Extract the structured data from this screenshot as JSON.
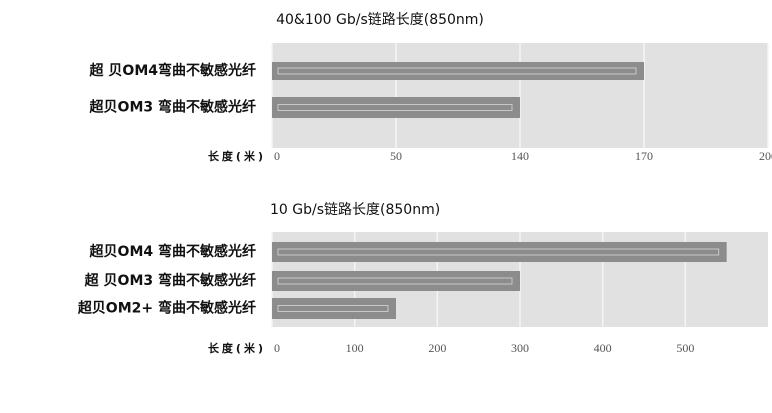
{
  "chart_data": [
    {
      "type": "bar",
      "orientation": "horizontal",
      "title": "40&100 Gb/s链路长度(850nm)",
      "x_label": "长度(米)",
      "categories": [
        "超 贝OM4弯曲不敏感光纤",
        "超贝OM3 弯曲不敏感光纤"
      ],
      "values": [
        170,
        140
      ],
      "color": "#8c8c8c",
      "xlim": [
        0,
        200
      ],
      "xticks": [
        0,
        50,
        140,
        170,
        200
      ],
      "grid": true
    },
    {
      "type": "bar",
      "orientation": "horizontal",
      "title": "10 Gb/s链路长度(850nm)",
      "x_label": "长度(米)",
      "categories": [
        "超贝OM4 弯曲不敏感光纤",
        "超 贝OM3 弯曲不敏感光纤",
        "超贝OM2+ 弯曲不敏感光纤"
      ],
      "values": [
        550,
        300,
        150
      ],
      "color": "#8c8c8c",
      "xlim": [
        0,
        600
      ],
      "xticks": [
        0,
        100,
        200,
        300,
        400,
        500
      ],
      "grid": true
    }
  ]
}
